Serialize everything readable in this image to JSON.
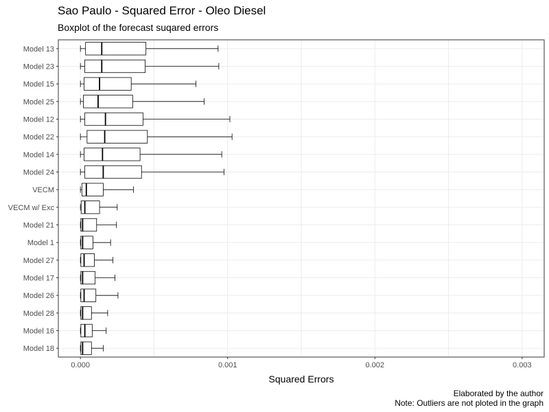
{
  "chart_data": {
    "type": "boxplot",
    "title": "Sao Paulo - Squared Error - Oleo Diesel",
    "subtitle": "Boxplot of the forecast suqared errors",
    "xlabel": "Squared Errors",
    "ylabel": "",
    "xlim": [
      -0.00015,
      0.00315
    ],
    "x_ticks": [
      0.0,
      0.001,
      0.002,
      0.003
    ],
    "x_tick_labels": [
      "0.000",
      "0.001",
      "0.002",
      "0.003"
    ],
    "grid": true,
    "orientation": "horizontal",
    "categories": [
      "Model 13",
      "Model 23",
      "Model 15",
      "Model 25",
      "Model 12",
      "Model 22",
      "Model 14",
      "Model 24",
      "VECM",
      "VECM w/ Exc",
      "Model 21",
      "Model 1",
      "Model 27",
      "Model 17",
      "Model 26",
      "Model 28",
      "Model 16",
      "Model 18"
    ],
    "boxes": [
      {
        "min": 0.0,
        "q1": 3.5e-05,
        "median": 0.000145,
        "q3": 0.000445,
        "max": 0.000935
      },
      {
        "min": 0.0,
        "q1": 3e-05,
        "median": 0.000145,
        "q3": 0.00044,
        "max": 0.00094
      },
      {
        "min": 0.0,
        "q1": 2.5e-05,
        "median": 0.00013,
        "q3": 0.000345,
        "max": 0.000785
      },
      {
        "min": 0.0,
        "q1": 2e-05,
        "median": 0.00012,
        "q3": 0.000355,
        "max": 0.00084
      },
      {
        "min": 0.0,
        "q1": 3e-05,
        "median": 0.00017,
        "q3": 0.000425,
        "max": 0.001015
      },
      {
        "min": 0.0,
        "q1": 4.5e-05,
        "median": 0.000165,
        "q3": 0.000455,
        "max": 0.00103
      },
      {
        "min": 0.0,
        "q1": 2.5e-05,
        "median": 0.00015,
        "q3": 0.000405,
        "max": 0.00096
      },
      {
        "min": 0.0,
        "q1": 3e-05,
        "median": 0.000155,
        "q3": 0.000415,
        "max": 0.000975
      },
      {
        "min": 0.0,
        "q1": 1e-05,
        "median": 4e-05,
        "q3": 0.000155,
        "max": 0.00036
      },
      {
        "min": 0.0,
        "q1": 5e-06,
        "median": 3e-05,
        "q3": 0.00013,
        "max": 0.00025
      },
      {
        "min": 0.0,
        "q1": 3e-06,
        "median": 1.5e-05,
        "q3": 0.00011,
        "max": 0.000245
      },
      {
        "min": 0.0,
        "q1": 3e-06,
        "median": 1.5e-05,
        "q3": 8.5e-05,
        "max": 0.000205
      },
      {
        "min": 0.0,
        "q1": 3e-06,
        "median": 2.5e-05,
        "q3": 9.5e-05,
        "max": 0.00022
      },
      {
        "min": 0.0,
        "q1": 3e-06,
        "median": 1.5e-05,
        "q3": 0.0001,
        "max": 0.000235
      },
      {
        "min": 0.0,
        "q1": 3e-06,
        "median": 2.5e-05,
        "q3": 0.000105,
        "max": 0.000255
      },
      {
        "min": 0.0,
        "q1": 3e-06,
        "median": 1.5e-05,
        "q3": 7.5e-05,
        "max": 0.000185
      },
      {
        "min": 0.0,
        "q1": 3e-06,
        "median": 3e-05,
        "q3": 8e-05,
        "max": 0.000175
      },
      {
        "min": 0.0,
        "q1": 3e-06,
        "median": 1.5e-05,
        "q3": 7.5e-05,
        "max": 0.000155
      }
    ]
  },
  "caption": {
    "line1": "Elaborated by the author",
    "line2": "Note: Outliers are not ploted in the graph"
  },
  "colors": {
    "grid": "#ebebeb",
    "border": "#333333",
    "box_fill": "#ffffff",
    "box_stroke": "#000000"
  }
}
